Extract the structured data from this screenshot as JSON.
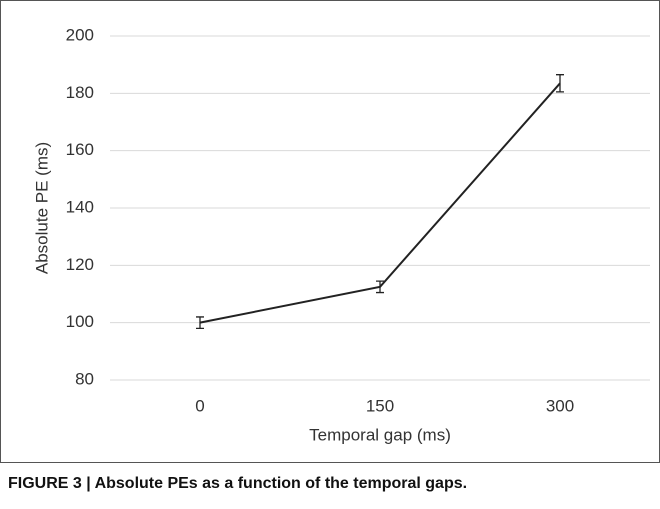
{
  "chart_data": {
    "type": "line",
    "xlabel": "Temporal gap (ms)",
    "ylabel": "Absolute PE (ms)",
    "caption": "FIGURE 3 | Absolute PEs as a function of the temporal gaps.",
    "categories": [
      "0",
      "150",
      "300"
    ],
    "values": [
      100,
      112.5,
      183.5
    ],
    "errors": [
      2,
      2,
      3
    ],
    "color": "#222222",
    "ylim": [
      80,
      200
    ],
    "yticks": [
      80,
      100,
      120,
      140,
      160,
      180,
      200
    ],
    "grid": true
  }
}
